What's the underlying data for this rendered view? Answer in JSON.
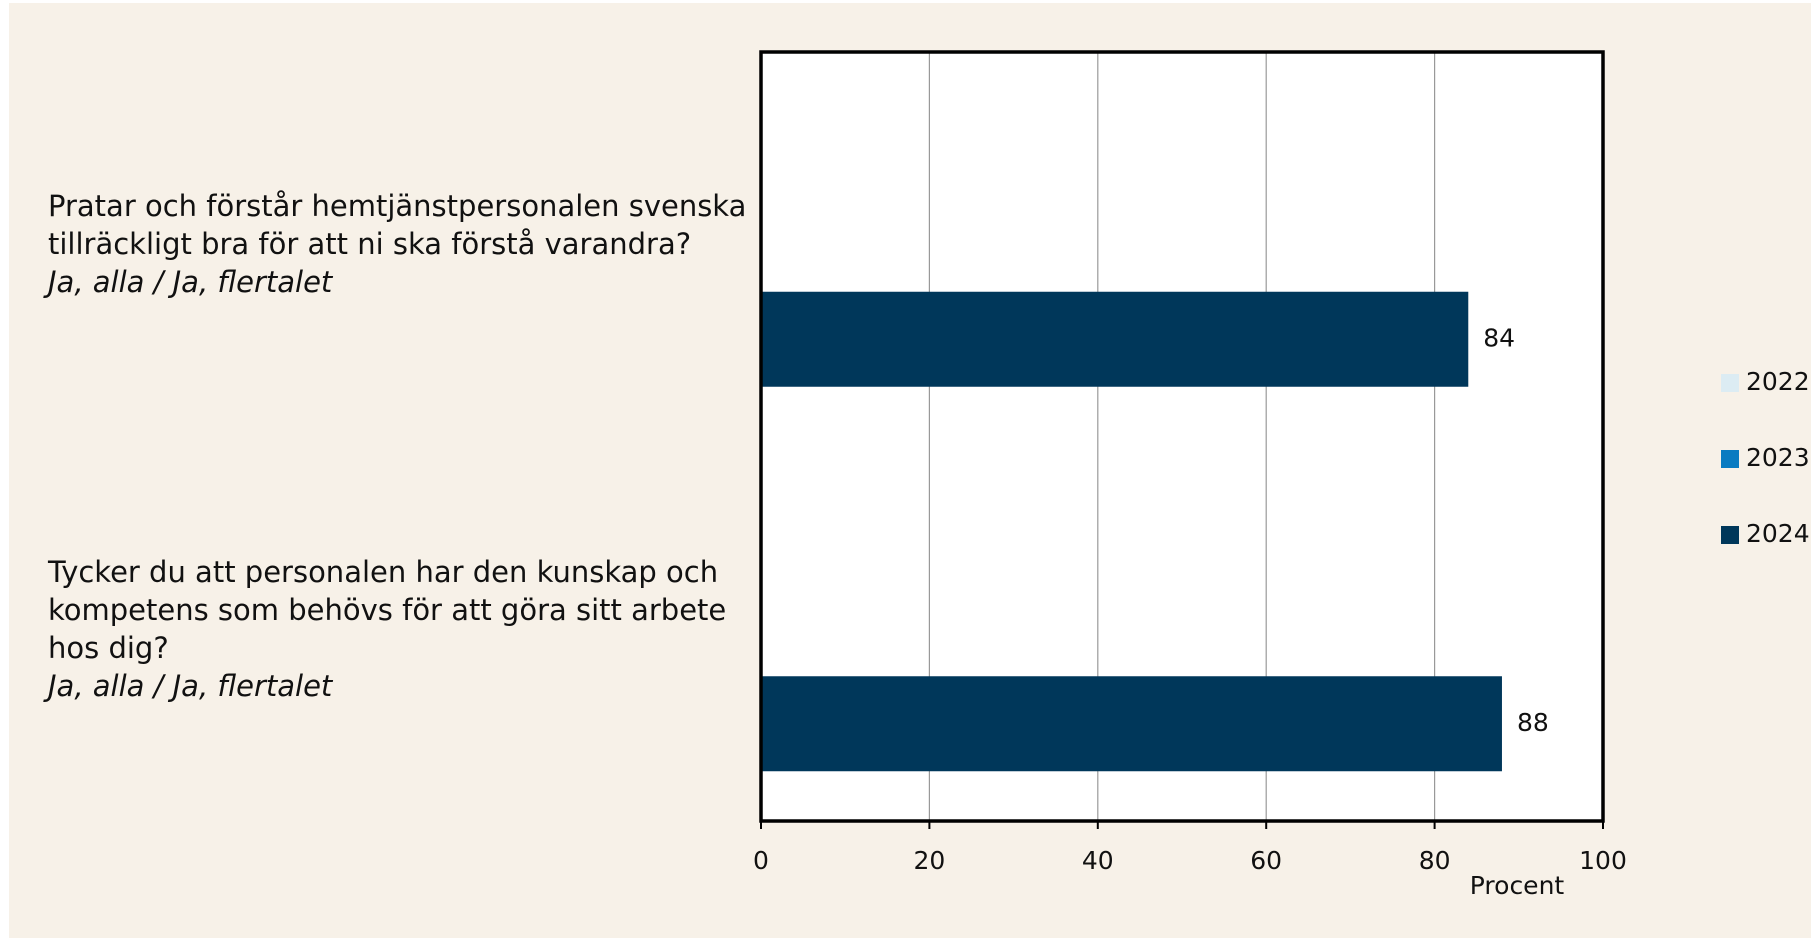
{
  "chart_data": {
    "type": "hbar",
    "categories": [
      "Pratar och förstår hemtjänstpersonalen svenska tillräckligt bra för att ni ska förstå varandra?",
      "Tycker du att personalen har den kunskap och kompetens som behövs för att göra sitt arbete hos dig?"
    ],
    "category_subtitles": [
      "Ja, alla / Ja, flertalet",
      "Ja, alla / Ja, flertalet"
    ],
    "series": [
      {
        "name": "2022",
        "color": "#dcecf3",
        "values": [
          null,
          null
        ]
      },
      {
        "name": "2023",
        "color": "#0a7bc1",
        "values": [
          null,
          null
        ]
      },
      {
        "name": "2024",
        "color": "#00375a",
        "values": [
          84,
          88
        ]
      }
    ],
    "xlabel": "Procent",
    "xlim": [
      0,
      100
    ],
    "xticks": [
      0,
      20,
      40,
      60,
      80,
      100
    ],
    "grid": true,
    "legend": "right"
  }
}
